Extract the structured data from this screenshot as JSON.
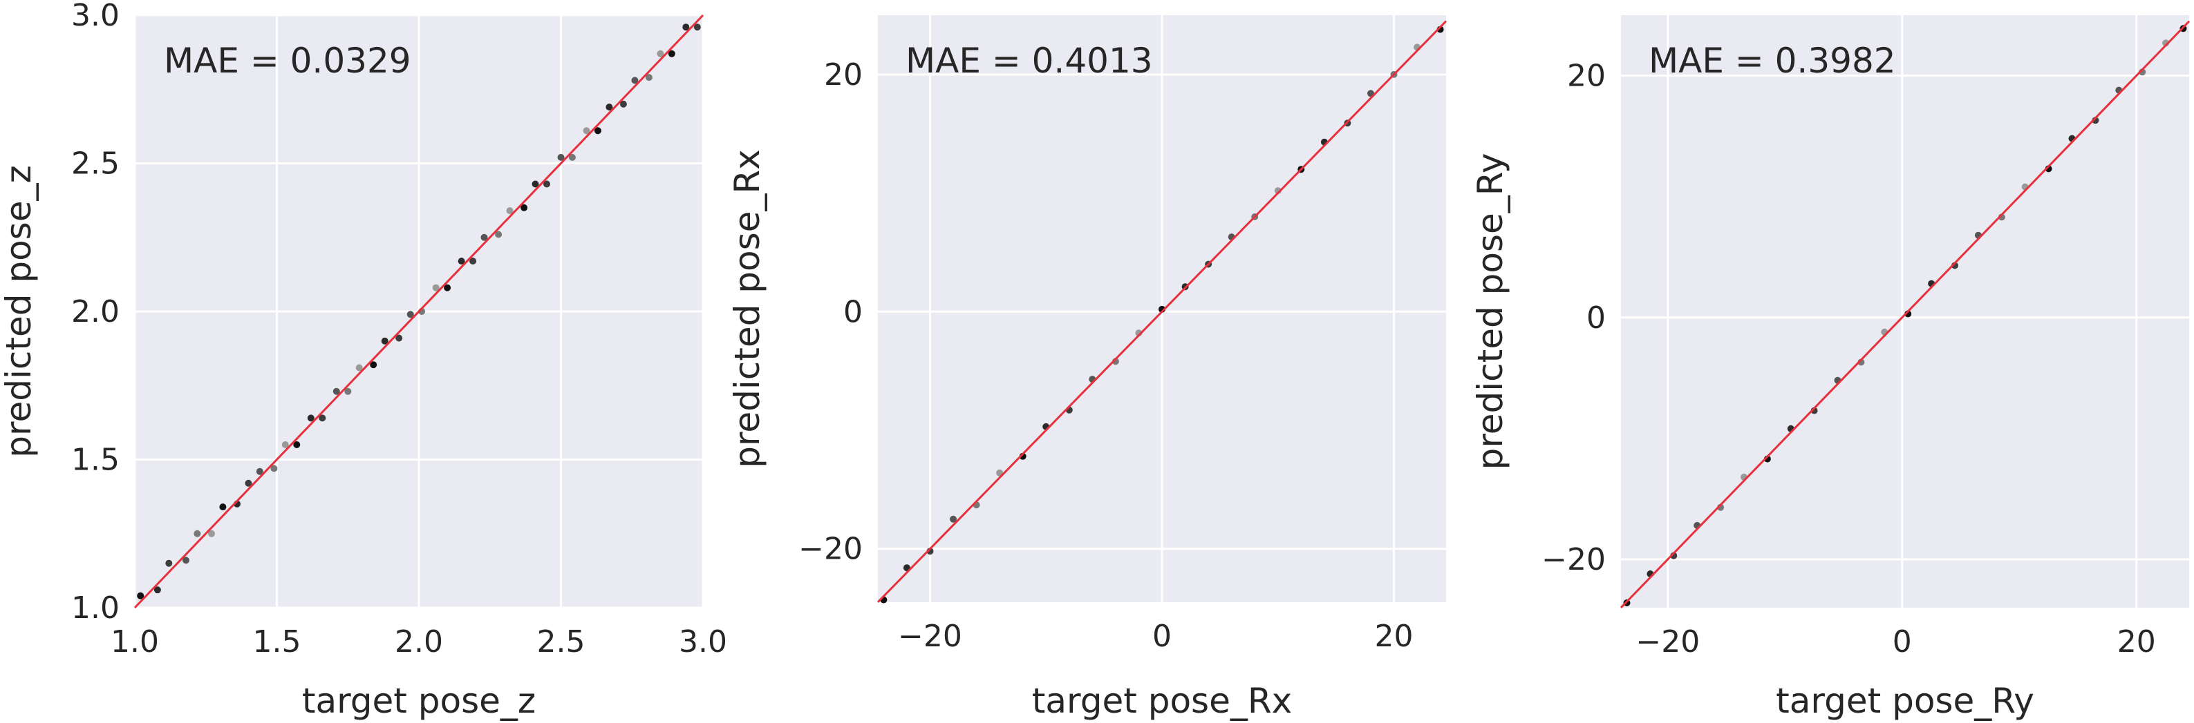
{
  "colors": {
    "panel_background": "#eaeaf2",
    "grid": "#ffffff",
    "fit_line": "#e8303c",
    "point_dark": "#111111",
    "text": "#262626"
  },
  "chart_data": [
    {
      "type": "scatter",
      "annotation": "MAE = 0.0329",
      "mae": 0.0329,
      "xlabel": "target pose_z",
      "ylabel": "predicted pose_z",
      "xlim": [
        1.0,
        3.0
      ],
      "ylim": [
        1.0,
        3.0
      ],
      "xticks": [
        1.0,
        1.5,
        2.0,
        2.5,
        3.0
      ],
      "yticks": [
        1.0,
        1.5,
        2.0,
        2.5,
        3.0
      ],
      "xtick_labels": [
        "1.0",
        "1.5",
        "2.0",
        "2.5",
        "3.0"
      ],
      "ytick_labels": [
        "1.0",
        "1.5",
        "2.0",
        "2.5",
        "3.0"
      ],
      "grid": true,
      "fit_line": {
        "x": [
          1.0,
          3.0
        ],
        "y": [
          1.0,
          3.0
        ]
      },
      "points": {
        "x": [
          1.02,
          1.08,
          1.12,
          1.18,
          1.22,
          1.27,
          1.31,
          1.36,
          1.4,
          1.44,
          1.49,
          1.53,
          1.57,
          1.62,
          1.66,
          1.71,
          1.75,
          1.79,
          1.84,
          1.88,
          1.93,
          1.97,
          2.01,
          2.06,
          2.1,
          2.15,
          2.19,
          2.23,
          2.28,
          2.32,
          2.37,
          2.41,
          2.45,
          2.5,
          2.54,
          2.59,
          2.63,
          2.67,
          2.72,
          2.76,
          2.81,
          2.85,
          2.89,
          2.94,
          2.98
        ],
        "y": [
          1.04,
          1.06,
          1.15,
          1.16,
          1.25,
          1.25,
          1.34,
          1.35,
          1.42,
          1.46,
          1.47,
          1.55,
          1.55,
          1.64,
          1.64,
          1.73,
          1.73,
          1.81,
          1.82,
          1.9,
          1.91,
          1.99,
          2.0,
          2.08,
          2.08,
          2.17,
          2.17,
          2.25,
          2.26,
          2.34,
          2.35,
          2.43,
          2.43,
          2.52,
          2.52,
          2.61,
          2.61,
          2.69,
          2.7,
          2.78,
          2.79,
          2.87,
          2.87,
          2.96,
          2.96
        ]
      }
    },
    {
      "type": "scatter",
      "annotation": "MAE = 0.4013",
      "mae": 0.4013,
      "xlabel": "target pose_Rx",
      "ylabel": "predicted pose_Rx",
      "xlim": [
        -24.5,
        24.5
      ],
      "ylim": [
        -24.5,
        25
      ],
      "xticks": [
        -20,
        0,
        20
      ],
      "yticks": [
        -20,
        0,
        20
      ],
      "xtick_labels": [
        "−20",
        "0",
        "20"
      ],
      "ytick_labels": [
        "−20",
        "0",
        "20"
      ],
      "grid": true,
      "fit_line": {
        "x": [
          -24.5,
          24.5
        ],
        "y": [
          -24.5,
          24.5
        ]
      },
      "points": {
        "x": [
          -24,
          -22,
          -20,
          -18,
          -16,
          -14,
          -12,
          -10,
          -8,
          -6,
          -4,
          -2,
          0,
          2,
          4,
          6,
          8,
          10,
          12,
          14,
          16,
          18,
          20,
          22,
          24
        ],
        "y": [
          -24.3,
          -21.6,
          -20.2,
          -17.5,
          -16.3,
          -13.6,
          -12.2,
          -9.7,
          -8.3,
          -5.7,
          -4.2,
          -1.8,
          0.2,
          2.1,
          4.0,
          6.3,
          8.0,
          10.2,
          12.0,
          14.3,
          15.9,
          18.4,
          20.0,
          22.3,
          23.8
        ]
      }
    },
    {
      "type": "scatter",
      "annotation": "MAE = 0.3982",
      "mae": 0.3982,
      "xlabel": "target pose_Ry",
      "ylabel": "predicted pose_Ry",
      "xlim": [
        -24,
        24.5
      ],
      "ylim": [
        -24,
        25
      ],
      "xticks": [
        -20,
        0,
        20
      ],
      "yticks": [
        -20,
        0,
        20
      ],
      "xtick_labels": [
        "−20",
        "0",
        "20"
      ],
      "ytick_labels": [
        "−20",
        "0",
        "20"
      ],
      "grid": true,
      "fit_line": {
        "x": [
          -24,
          24.5
        ],
        "y": [
          -24,
          24.5
        ]
      },
      "points": {
        "x": [
          -23.5,
          -21.5,
          -19.5,
          -17.5,
          -15.5,
          -13.5,
          -11.5,
          -9.5,
          -7.5,
          -5.5,
          -3.5,
          -1.5,
          0.5,
          2.5,
          4.5,
          6.5,
          8.5,
          10.5,
          12.5,
          14.5,
          16.5,
          18.5,
          20.5,
          22.5,
          24
        ],
        "y": [
          -23.6,
          -21.2,
          -19.7,
          -17.2,
          -15.7,
          -13.2,
          -11.7,
          -9.2,
          -7.7,
          -5.2,
          -3.7,
          -1.2,
          0.3,
          2.8,
          4.3,
          6.8,
          8.3,
          10.8,
          12.3,
          14.8,
          16.3,
          18.8,
          20.3,
          22.7,
          23.9
        ]
      }
    }
  ]
}
